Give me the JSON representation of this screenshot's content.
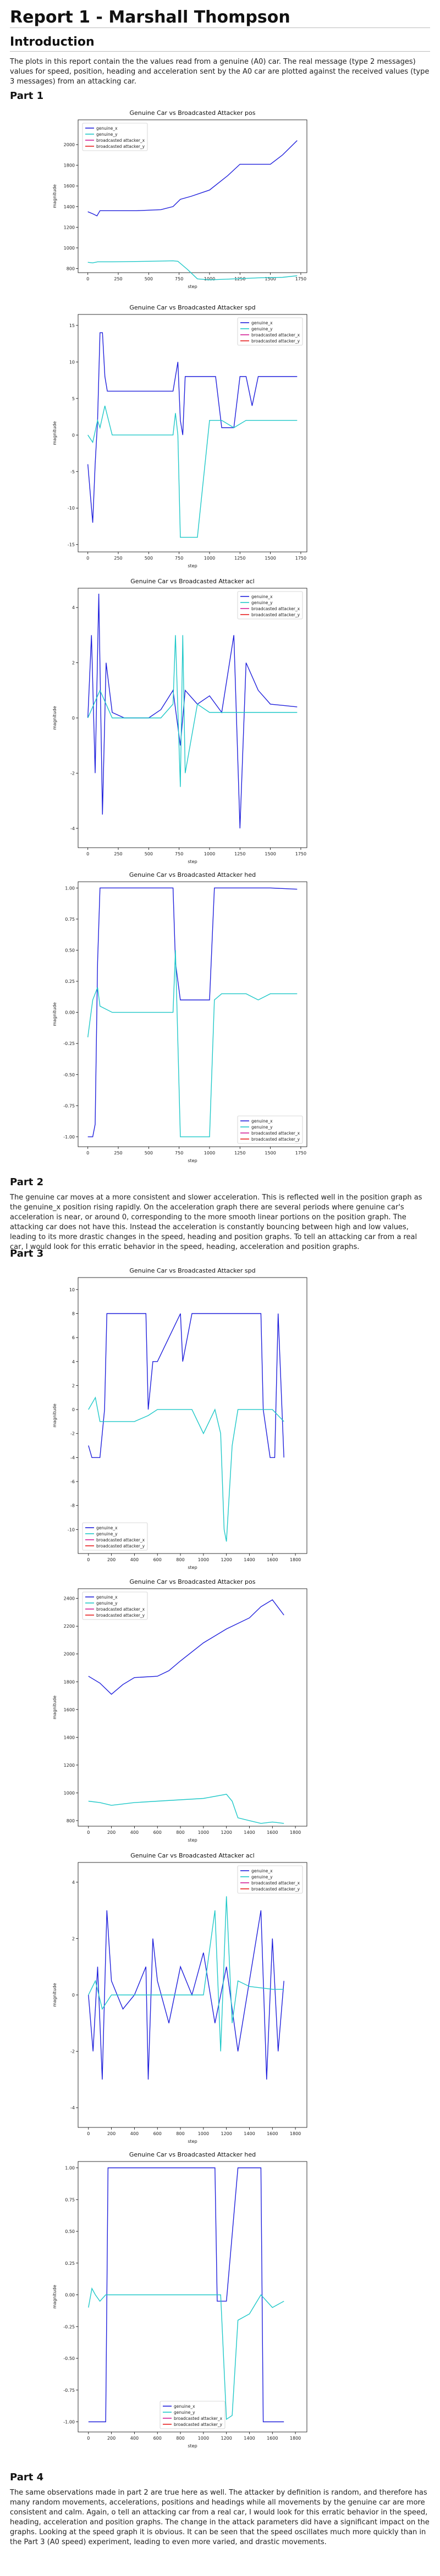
{
  "document": {
    "title": "Report 1 - Marshall Thompson",
    "sections": [
      {
        "heading": "Introduction",
        "paragraph": "The plots in this report contain the the values read from a genuine (A0) car. The real message (type 2 messages) values for speed, position, heading and acceleration sent by the A0 car are plotted against the received values (type 3 messages) from an attacking car."
      },
      {
        "heading": "Part 1"
      },
      {
        "heading": "Part 2",
        "paragraph": "The genuine car moves at a more consistent and slower acceleration. This is reflected well in the position graph as the genuine_x position rising rapidly. On the acceleration graph there are several periods where genuine car's acceleration is near, or around 0, corresponding to the more smooth linear portions on the position graph. The attacking car does not have this. Instead the acceleration is constantly bouncing between high and low values, leading to its more drastic changes in the speed, heading and position graphs. To tell an attacking car from a real car, I would look for this erratic behavior in the speed, heading, acceleration and position graphs."
      },
      {
        "heading": "Part 3"
      },
      {
        "heading": "Part 4",
        "paragraph": "The same observations made in part 2 are true here as well. The attacker by definition is random, and therefore has many random movements, accelerations, positions and headings while all movements by the genuine car are more consistent and calm. Again, o tell an attacking car from a real car, I would look for this erratic behavior in the speed, heading, acceleration and position graphs. The change in the attack parameters did have a significant impact on the graphs. Looking at the speed graph it is obvious. It can be seen that the speed oscillates much more quickly than in the Part 3 (A0 speed) experiment, leading to even more varied, and drastic movements."
      }
    ]
  },
  "colors": {
    "genuine_x": "#1f1fdc",
    "genuine_y": "#1fc8c8",
    "broadcasted_attacker_x": "#d21e96",
    "broadcasted_attacker_y": "#e81e1e"
  },
  "legend_labels": [
    "genuine_x",
    "genuine_y",
    "broadcasted attacker_x",
    "broadcasted attacker_y"
  ],
  "chart_data": [
    {
      "type": "line",
      "title": "Genuine Car vs Broadcasted Attacker pos",
      "xlabel": "step",
      "ylabel": "magnitude",
      "xlim": [
        -80,
        1800
      ],
      "ylim": [
        760,
        2240
      ],
      "xticks": [
        0,
        250,
        500,
        750,
        1000,
        1250,
        1500,
        1750
      ],
      "yticks": [
        800,
        1000,
        1200,
        1400,
        1600,
        1800,
        2000
      ],
      "legend": "top-left",
      "series": [
        {
          "name": "genuine_x",
          "x": [
            0,
            40,
            75,
            100,
            200,
            400,
            600,
            700,
            760,
            850,
            1000,
            1150,
            1250,
            1400,
            1500,
            1600,
            1720
          ],
          "y": [
            1350,
            1330,
            1310,
            1360,
            1360,
            1360,
            1370,
            1400,
            1470,
            1500,
            1560,
            1700,
            1810,
            1810,
            1810,
            1900,
            2040
          ]
        },
        {
          "name": "genuine_y",
          "x": [
            0,
            40,
            80,
            200,
            500,
            700,
            740,
            760,
            820,
            900,
            1000,
            1200,
            1400,
            1600,
            1720
          ],
          "y": [
            860,
            855,
            865,
            865,
            870,
            875,
            870,
            850,
            790,
            700,
            690,
            700,
            710,
            715,
            730
          ]
        }
      ]
    },
    {
      "type": "line",
      "title": "Genuine Car vs Broadcasted Attacker spd",
      "xlabel": "step",
      "ylabel": "magnitude",
      "xlim": [
        -80,
        1800
      ],
      "ylim": [
        -16,
        16.5
      ],
      "xticks": [
        0,
        250,
        500,
        750,
        1000,
        1250,
        1500,
        1750
      ],
      "yticks": [
        -15,
        -10,
        -5,
        0,
        5,
        10,
        15
      ],
      "legend": "top-right",
      "series": [
        {
          "name": "genuine_x",
          "x": [
            0,
            20,
            40,
            60,
            80,
            100,
            120,
            140,
            160,
            200,
            400,
            600,
            700,
            720,
            740,
            760,
            780,
            800,
            900,
            1000,
            1050,
            1100,
            1150,
            1200,
            1250,
            1300,
            1350,
            1400,
            1500,
            1600,
            1720
          ],
          "y": [
            -4,
            -8,
            -12,
            -4,
            2,
            14,
            14,
            8,
            6,
            6,
            6,
            6,
            6,
            8,
            10,
            2,
            0,
            8,
            8,
            8,
            8,
            1,
            1,
            1,
            8,
            8,
            4,
            8,
            8,
            8,
            8
          ]
        },
        {
          "name": "genuine_y",
          "x": [
            0,
            40,
            80,
            100,
            140,
            200,
            400,
            600,
            700,
            720,
            740,
            760,
            800,
            900,
            1000,
            1050,
            1100,
            1200,
            1300,
            1400,
            1500,
            1720
          ],
          "y": [
            0,
            -1,
            2,
            1,
            4,
            0,
            0,
            0,
            0,
            3,
            0,
            -14,
            -14,
            -14,
            2,
            2,
            2,
            1,
            2,
            2,
            2,
            2
          ]
        }
      ]
    },
    {
      "type": "line",
      "title": "Genuine Car vs Broadcasted Attacker acl",
      "xlabel": "step",
      "ylabel": "magnitude",
      "xlim": [
        -80,
        1800
      ],
      "ylim": [
        -4.7,
        4.7
      ],
      "xticks": [
        0,
        250,
        500,
        750,
        1000,
        1250,
        1500,
        1750
      ],
      "yticks": [
        -4,
        -2,
        0,
        2,
        4
      ],
      "legend": "top-right",
      "series": [
        {
          "name": "genuine_x",
          "x": [
            0,
            30,
            60,
            90,
            120,
            150,
            200,
            300,
            500,
            600,
            700,
            760,
            800,
            900,
            1000,
            1100,
            1200,
            1250,
            1300,
            1400,
            1500,
            1720
          ],
          "y": [
            0,
            3,
            -2,
            4.5,
            -3.5,
            2,
            0.2,
            0,
            0,
            0.3,
            1,
            -1,
            1,
            0.5,
            0.8,
            0.2,
            3,
            -4,
            2,
            1,
            0.5,
            0.4
          ]
        },
        {
          "name": "genuine_y",
          "x": [
            0,
            100,
            200,
            400,
            600,
            700,
            720,
            760,
            780,
            800,
            900,
            1000,
            1200,
            1400,
            1720
          ],
          "y": [
            0,
            1,
            0,
            0,
            0,
            0.5,
            3,
            -2.5,
            3,
            -2,
            0.5,
            0.2,
            0.2,
            0.2,
            0.2
          ]
        }
      ]
    },
    {
      "type": "line",
      "title": "Genuine Car vs Broadcasted Attacker hed",
      "xlabel": "step",
      "ylabel": "magnitude",
      "xlim": [
        -80,
        1800
      ],
      "ylim": [
        -1.08,
        1.05
      ],
      "xticks": [
        0,
        250,
        500,
        750,
        1000,
        1250,
        1500,
        1750
      ],
      "yticks": [
        -1.0,
        -0.75,
        -0.5,
        -0.25,
        0.0,
        0.25,
        0.5,
        0.75,
        1.0
      ],
      "legend": "bottom-right",
      "series": [
        {
          "name": "genuine_x",
          "x": [
            0,
            40,
            60,
            80,
            100,
            200,
            400,
            600,
            700,
            720,
            760,
            800,
            900,
            1000,
            1040,
            1100,
            1200,
            1300,
            1400,
            1500,
            1720
          ],
          "y": [
            -1,
            -1,
            -0.9,
            0.4,
            1,
            1,
            1,
            1,
            1,
            0.4,
            0.1,
            0.1,
            0.1,
            0.1,
            1,
            1,
            1,
            1,
            1,
            1,
            0.99
          ]
        },
        {
          "name": "genuine_y",
          "x": [
            0,
            20,
            40,
            80,
            100,
            200,
            400,
            600,
            700,
            720,
            760,
            800,
            900,
            1000,
            1040,
            1100,
            1300,
            1400,
            1500,
            1720
          ],
          "y": [
            -0.2,
            -0.05,
            0.1,
            0.2,
            0.05,
            0,
            0,
            0,
            0,
            0.5,
            -1,
            -1,
            -1,
            -1,
            0.1,
            0.15,
            0.15,
            0.1,
            0.15,
            0.15
          ]
        }
      ]
    },
    {
      "type": "line",
      "title": "Genuine Car vs Broadcasted Attacker spd",
      "xlabel": "step",
      "ylabel": "magnitude",
      "xlim": [
        -90,
        1900
      ],
      "ylim": [
        -12,
        11
      ],
      "xticks": [
        0,
        200,
        400,
        600,
        800,
        1000,
        1200,
        1400,
        1600,
        1800
      ],
      "yticks": [
        -10,
        -8,
        -6,
        -4,
        -2,
        0,
        2,
        4,
        6,
        8,
        10
      ],
      "legend": "bottom-left",
      "series": [
        {
          "name": "genuine_x",
          "x": [
            0,
            30,
            60,
            100,
            140,
            160,
            200,
            400,
            500,
            520,
            560,
            600,
            800,
            820,
            900,
            1000,
            1100,
            1200,
            1300,
            1400,
            1500,
            1520,
            1580,
            1620,
            1650,
            1700
          ],
          "y": [
            -3,
            -4,
            -4,
            -4,
            0,
            8,
            8,
            8,
            8,
            0,
            4,
            4,
            8,
            4,
            8,
            8,
            8,
            8,
            8,
            8,
            8,
            0,
            -4,
            -4,
            8,
            -4
          ]
        },
        {
          "name": "genuine_y",
          "x": [
            0,
            60,
            100,
            200,
            400,
            520,
            600,
            800,
            900,
            1000,
            1100,
            1150,
            1180,
            1200,
            1250,
            1300,
            1400,
            1500,
            1600,
            1700
          ],
          "y": [
            0,
            1,
            -1,
            -1,
            -1,
            -0.5,
            0,
            0,
            0,
            -2,
            0,
            -2,
            -10,
            -11,
            -3,
            0,
            0,
            0,
            0,
            -1
          ]
        }
      ]
    },
    {
      "type": "line",
      "title": "Genuine Car vs Broadcasted Attacker pos",
      "xlabel": "step",
      "ylabel": "magnitude",
      "xlim": [
        -90,
        1900
      ],
      "ylim": [
        760,
        2470
      ],
      "xticks": [
        0,
        200,
        400,
        600,
        800,
        1000,
        1200,
        1400,
        1600,
        1800
      ],
      "yticks": [
        800,
        1000,
        1200,
        1400,
        1600,
        1800,
        2000,
        2200,
        2400
      ],
      "legend": "top-left",
      "series": [
        {
          "name": "genuine_x",
          "x": [
            0,
            100,
            200,
            300,
            400,
            600,
            700,
            800,
            1000,
            1200,
            1400,
            1500,
            1600,
            1700
          ],
          "y": [
            1840,
            1790,
            1710,
            1780,
            1830,
            1840,
            1880,
            1950,
            2080,
            2180,
            2260,
            2340,
            2390,
            2280
          ]
        },
        {
          "name": "genuine_y",
          "x": [
            0,
            100,
            200,
            300,
            400,
            600,
            800,
            1000,
            1200,
            1250,
            1300,
            1400,
            1500,
            1600,
            1700
          ],
          "y": [
            940,
            930,
            910,
            920,
            930,
            940,
            950,
            960,
            990,
            940,
            820,
            800,
            780,
            790,
            780
          ]
        }
      ]
    },
    {
      "type": "line",
      "title": "Genuine Car vs Broadcasted Attacker acl",
      "xlabel": "step",
      "ylabel": "magnitude",
      "xlim": [
        -90,
        1900
      ],
      "ylim": [
        -4.7,
        4.7
      ],
      "xticks": [
        0,
        200,
        400,
        600,
        800,
        1000,
        1200,
        1400,
        1600,
        1800
      ],
      "yticks": [
        -4,
        -2,
        0,
        2,
        4
      ],
      "legend": "top-right",
      "series": [
        {
          "name": "genuine_x",
          "x": [
            0,
            40,
            80,
            120,
            160,
            200,
            300,
            400,
            500,
            520,
            560,
            600,
            700,
            800,
            900,
            1000,
            1100,
            1200,
            1300,
            1400,
            1500,
            1550,
            1600,
            1650,
            1700
          ],
          "y": [
            0,
            -2,
            1,
            -3,
            3,
            0.5,
            -0.5,
            0,
            1,
            -3,
            2,
            0.5,
            -1,
            1,
            0,
            1.5,
            -1,
            1,
            -2,
            0.5,
            3,
            -3,
            2,
            -2,
            0.5
          ]
        },
        {
          "name": "genuine_y",
          "x": [
            0,
            60,
            120,
            200,
            400,
            600,
            800,
            1000,
            1100,
            1150,
            1200,
            1250,
            1300,
            1400,
            1600,
            1700
          ],
          "y": [
            0,
            0.5,
            -0.5,
            0,
            0,
            0,
            0,
            0,
            3,
            -2,
            3.5,
            -1,
            0.5,
            0.3,
            0.2,
            0.2
          ]
        }
      ]
    },
    {
      "type": "line",
      "title": "Genuine Car vs Broadcasted Attacker hed",
      "xlabel": "step",
      "ylabel": "magnitude",
      "xlim": [
        -90,
        1900
      ],
      "ylim": [
        -1.08,
        1.05
      ],
      "xticks": [
        0,
        200,
        400,
        600,
        800,
        1000,
        1200,
        1400,
        1600,
        1800
      ],
      "yticks": [
        -1.0,
        -0.75,
        -0.5,
        -0.25,
        0.0,
        0.25,
        0.5,
        0.75,
        1.0
      ],
      "legend": "bottom-center",
      "series": [
        {
          "name": "genuine_x",
          "x": [
            0,
            100,
            150,
            170,
            200,
            400,
            600,
            800,
            1000,
            1100,
            1120,
            1200,
            1300,
            1320,
            1450,
            1500,
            1520,
            1600,
            1700
          ],
          "y": [
            -1,
            -1,
            -1,
            1,
            1,
            1,
            1,
            1,
            1,
            1,
            -0.05,
            -0.05,
            1,
            1,
            1,
            1,
            -1,
            -1,
            -1
          ]
        },
        {
          "name": "genuine_y",
          "x": [
            0,
            30,
            60,
            100,
            150,
            200,
            400,
            600,
            800,
            1000,
            1150,
            1200,
            1250,
            1300,
            1400,
            1500,
            1600,
            1700
          ],
          "y": [
            -0.1,
            0.05,
            0,
            -0.05,
            0,
            0,
            0,
            0,
            0,
            0,
            0,
            -0.98,
            -0.95,
            -0.2,
            -0.15,
            0,
            -0.1,
            -0.05
          ]
        }
      ]
    }
  ]
}
